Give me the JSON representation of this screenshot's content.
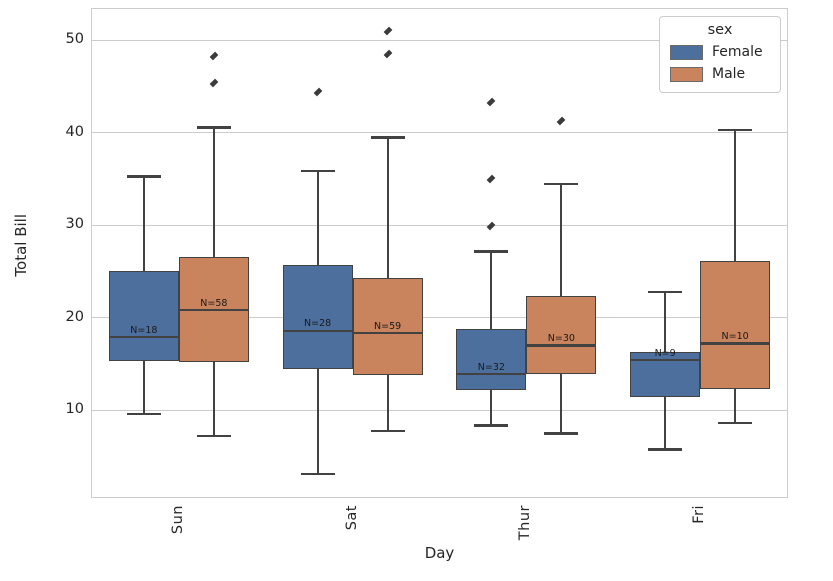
{
  "chart_data": {
    "type": "box",
    "title": "",
    "xlabel": "Day",
    "ylabel": "Total Bill",
    "categories": [
      "Sun",
      "Sat",
      "Thur",
      "Fri"
    ],
    "yticks": [
      10,
      20,
      30,
      40,
      50
    ],
    "ylim": [
      0.6,
      53.4
    ],
    "grid": "horizontal-only",
    "marker": "diamond",
    "legend": {
      "title": "sex",
      "position": "upper-right"
    },
    "colors": {
      "edge": "#424242",
      "grid": "#cccccc",
      "text": "#262626"
    },
    "series": [
      {
        "name": "Female",
        "color": "#4c6f9d",
        "boxes": [
          {
            "category": "Sun",
            "whisker_low": 9.6,
            "q1": 15.3,
            "median": 17.9,
            "q3": 25.1,
            "whisker_high": 35.3,
            "outliers": [],
            "n": 18,
            "n_label": "N=18"
          },
          {
            "category": "Sat",
            "whisker_low": 3.1,
            "q1": 14.4,
            "median": 18.6,
            "q3": 25.7,
            "whisker_high": 35.9,
            "outliers": [
              44.4
            ],
            "n": 28,
            "n_label": "N=28"
          },
          {
            "category": "Thur",
            "whisker_low": 8.35,
            "q1": 12.2,
            "median": 13.9,
            "q3": 18.8,
            "whisker_high": 27.2,
            "outliers": [
              29.9,
              35.0,
              43.3
            ],
            "n": 32,
            "n_label": "N=32"
          },
          {
            "category": "Fri",
            "whisker_low": 5.75,
            "q1": 11.4,
            "median": 15.4,
            "q3": 16.3,
            "whisker_high": 22.8,
            "outliers": [],
            "n": 9,
            "n_label": "N=9"
          }
        ]
      },
      {
        "name": "Male",
        "color": "#c9835d",
        "boxes": [
          {
            "category": "Sun",
            "whisker_low": 7.25,
            "q1": 15.2,
            "median": 20.8,
            "q3": 26.6,
            "whisker_high": 40.6,
            "outliers": [
              45.4,
              48.3
            ],
            "n": 58,
            "n_label": "N=58"
          },
          {
            "category": "Sat",
            "whisker_low": 7.75,
            "q1": 13.8,
            "median": 18.3,
            "q3": 24.3,
            "whisker_high": 39.5,
            "outliers": [
              48.5,
              51.0
            ],
            "n": 59,
            "n_label": "N=59"
          },
          {
            "category": "Thur",
            "whisker_low": 7.5,
            "q1": 13.9,
            "median": 17.0,
            "q3": 22.4,
            "whisker_high": 34.5,
            "outliers": [
              41.3
            ],
            "n": 30,
            "n_label": "N=30"
          },
          {
            "category": "Fri",
            "whisker_low": 8.6,
            "q1": 12.3,
            "median": 17.2,
            "q3": 26.1,
            "whisker_high": 40.3,
            "outliers": [],
            "n": 10,
            "n_label": "N=10"
          }
        ]
      }
    ]
  }
}
